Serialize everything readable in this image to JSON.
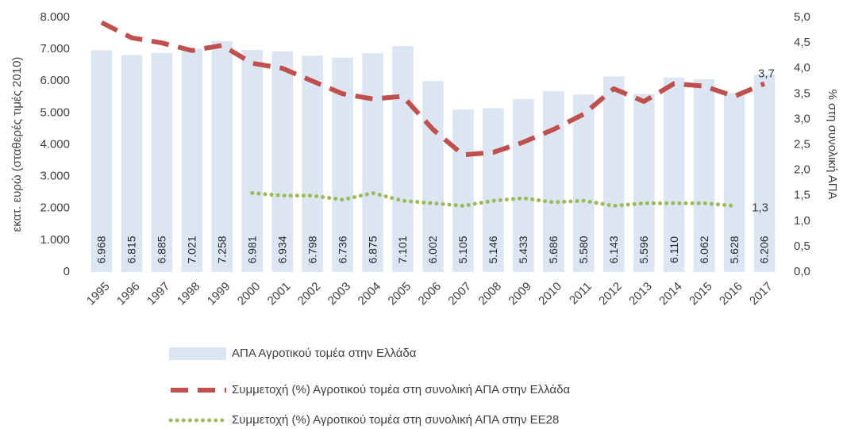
{
  "chart_data": {
    "type": "combo",
    "categories": [
      "1995",
      "1996",
      "1997",
      "1998",
      "1999",
      "2000",
      "2001",
      "2002",
      "2003",
      "2004",
      "2005",
      "2006",
      "2007",
      "2008",
      "2009",
      "2010",
      "2011",
      "2012",
      "2013",
      "2014",
      "2015",
      "2016",
      "2017"
    ],
    "y_label": "εκατ. ευρώ (σταθερές τιμές 2010)",
    "y2_label": "% στη συνολική ΑΠΑ",
    "ylim": [
      0,
      8000
    ],
    "yticks": [
      0,
      {
        "value": 1000,
        "label": "1.000"
      },
      {
        "value": 2000,
        "label": "2.000"
      },
      {
        "value": 3000,
        "label": "3.000"
      },
      {
        "value": 4000,
        "label": "4.000"
      },
      {
        "value": 5000,
        "label": "5.000"
      },
      {
        "value": 6000,
        "label": "6.000"
      },
      {
        "value": 7000,
        "label": "7.000"
      },
      {
        "value": 8000,
        "label": "8.000"
      }
    ],
    "y2lim": [
      0,
      5
    ],
    "y2ticks": [
      {
        "value": 0,
        "label": "0,0"
      },
      {
        "value": 0.5,
        "label": "0,5"
      },
      {
        "value": 1,
        "label": "1,0"
      },
      {
        "value": 1.5,
        "label": "1,5"
      },
      {
        "value": 2,
        "label": "2,0"
      },
      {
        "value": 2.5,
        "label": "2,5"
      },
      {
        "value": 3,
        "label": "3,0"
      },
      {
        "value": 3.5,
        "label": "3,5"
      },
      {
        "value": 4,
        "label": "4,0"
      },
      {
        "value": 4.5,
        "label": "4,5"
      },
      {
        "value": 5,
        "label": "5,0"
      }
    ],
    "grid": false,
    "series": [
      {
        "name": "ΑΠΑ Αγροτικού τομέα στην Ελλάδα",
        "type": "bar",
        "color": "#dce6f2",
        "values": [
          6968,
          6815,
          6885,
          7021,
          7258,
          6981,
          6934,
          6798,
          6736,
          6875,
          7101,
          6002,
          5105,
          5146,
          5433,
          5686,
          5580,
          6143,
          5596,
          6110,
          6062,
          5628,
          6206
        ],
        "value_labels": [
          "6.968",
          "6.815",
          "6.885",
          "7.021",
          "7.258",
          "6.981",
          "6.934",
          "6.798",
          "6.736",
          "6.875",
          "7.101",
          "6.002",
          "5.105",
          "5.146",
          "5.433",
          "5.686",
          "5.580",
          "6.143",
          "5.596",
          "6.110",
          "6.062",
          "5.628",
          "6.206"
        ]
      },
      {
        "name": "Συμμετοχή (%) Αγροτικού τομέα στη συνολική ΑΠΑ στην Ελλάδα",
        "type": "line",
        "style": "dashed",
        "axis": "y2",
        "color": "#c0504d",
        "values": [
          4.9,
          4.6,
          4.5,
          4.35,
          4.45,
          4.1,
          4.0,
          3.75,
          3.5,
          3.4,
          3.45,
          2.8,
          2.3,
          2.35,
          2.55,
          2.8,
          3.1,
          3.6,
          3.35,
          3.7,
          3.65,
          3.45,
          3.7
        ],
        "value_labels": [
          null,
          null,
          null,
          null,
          null,
          null,
          null,
          null,
          null,
          null,
          null,
          null,
          null,
          null,
          null,
          null,
          null,
          null,
          null,
          null,
          null,
          null,
          "3,7"
        ]
      },
      {
        "name": "Συμμετοχή (%) Αγροτικού τομέα στη συνολική ΑΠΑ στην ΕΕ28",
        "type": "line",
        "style": "dotted",
        "axis": "y2",
        "color": "#9bbb59",
        "values": [
          null,
          null,
          null,
          null,
          null,
          1.55,
          1.5,
          1.5,
          1.42,
          1.55,
          1.4,
          1.35,
          1.3,
          1.4,
          1.45,
          1.37,
          1.4,
          1.3,
          1.35,
          1.35,
          1.35,
          1.3,
          null
        ],
        "value_labels": [
          null,
          null,
          null,
          null,
          null,
          null,
          null,
          null,
          null,
          null,
          null,
          null,
          null,
          null,
          null,
          null,
          null,
          null,
          null,
          null,
          null,
          "1,3",
          null
        ]
      }
    ]
  }
}
